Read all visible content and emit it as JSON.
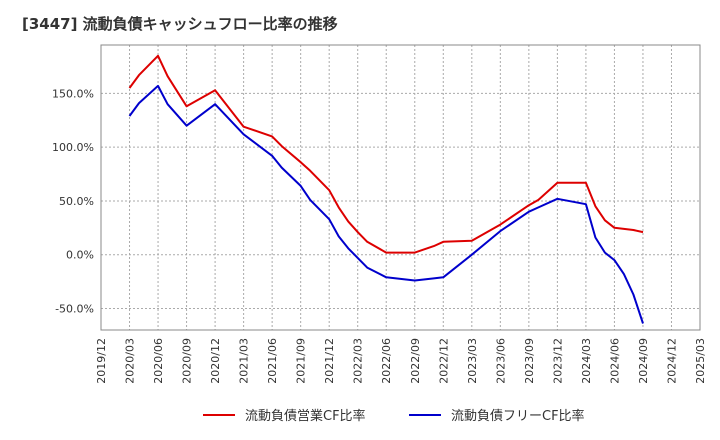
{
  "chart_data": {
    "type": "line",
    "title": "[3447]  流動負債キャッシュフロー比率の推移",
    "xlabel": "",
    "ylabel": "",
    "grid": true,
    "legend_placement": "bottom",
    "x_ticks": [
      "2019/12",
      "2020/03",
      "2020/06",
      "2020/09",
      "2020/12",
      "2021/03",
      "2021/06",
      "2021/09",
      "2021/12",
      "2022/03",
      "2022/06",
      "2022/09",
      "2022/12",
      "2023/03",
      "2023/06",
      "2023/09",
      "2023/12",
      "2024/03",
      "2024/06",
      "2024/09",
      "2024/12",
      "2025/03"
    ],
    "y_ticks": [
      150,
      100,
      50,
      0,
      -50
    ],
    "y_tick_labels": [
      "150.0%",
      "100.0%",
      "50.0%",
      "0.0%",
      "-50.0%"
    ],
    "xlim": [
      "2019/12",
      "2025/03"
    ],
    "ylim": [
      -70,
      195
    ],
    "x": [
      "2020/03",
      "2020/04",
      "2020/06",
      "2020/07",
      "2020/09",
      "2020/12",
      "2021/03",
      "2021/06",
      "2021/07",
      "2021/09",
      "2021/10",
      "2021/12",
      "2022/01",
      "2022/02",
      "2022/03",
      "2022/04",
      "2022/06",
      "2022/09",
      "2022/11",
      "2022/12",
      "2023/03",
      "2023/06",
      "2023/09",
      "2023/10",
      "2023/12",
      "2024/03",
      "2024/04",
      "2024/05",
      "2024/06",
      "2024/07",
      "2024/08",
      "2024/09"
    ],
    "series": [
      {
        "name": "流動負債営業CF比率",
        "color": "#dd0000",
        "values": [
          155,
          167,
          185,
          166,
          138,
          153,
          119,
          110,
          101,
          86,
          78,
          60,
          44,
          31,
          21,
          12,
          2,
          2,
          8,
          12,
          13,
          28,
          46,
          51,
          67,
          67,
          45,
          32,
          25,
          24,
          23,
          21
        ]
      },
      {
        "name": "流動負債フリーCF比率",
        "color": "#0000cc",
        "values": [
          129,
          141,
          157,
          140,
          120,
          140,
          112,
          92,
          81,
          64,
          51,
          33,
          17,
          6,
          -3,
          -12,
          -21,
          -24,
          -22,
          -21,
          0,
          22,
          40,
          44,
          52,
          47,
          16,
          2,
          -5,
          -18,
          -37,
          -64
        ]
      }
    ]
  }
}
